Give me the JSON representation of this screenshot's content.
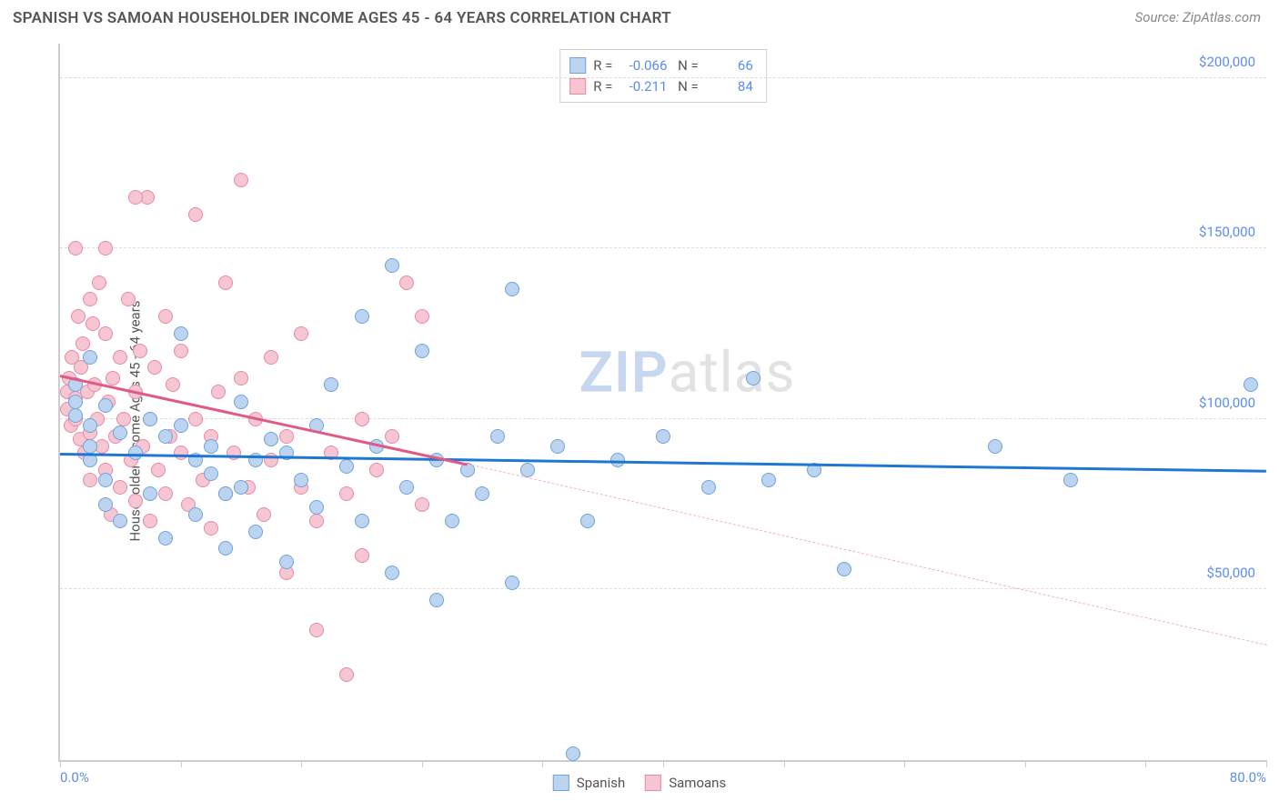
{
  "header": {
    "title": "SPANISH VS SAMOAN HOUSEHOLDER INCOME AGES 45 - 64 YEARS CORRELATION CHART",
    "source": "Source: ZipAtlas.com"
  },
  "chart": {
    "type": "scatter",
    "ylabel": "Householder Income Ages 45 - 64 years",
    "xlim": [
      0,
      80
    ],
    "ylim": [
      0,
      210000
    ],
    "x_tick_positions": [
      0,
      8,
      16,
      24,
      32,
      40,
      48,
      56,
      64,
      72,
      80
    ],
    "x_label_min": "0.0%",
    "x_label_max": "80.0%",
    "y_gridlines": [
      50000,
      100000,
      150000,
      200000
    ],
    "y_tick_labels": [
      "$50,000",
      "$100,000",
      "$150,000",
      "$200,000"
    ],
    "background_color": "#ffffff",
    "grid_color": "#dddddd",
    "axis_color": "#cccccc",
    "tick_label_color": "#5b8def",
    "watermark": {
      "zip": "ZIP",
      "rest": "atlas",
      "zip_color": "#c7d7ef",
      "rest_color": "#e2e2e2"
    },
    "series": [
      {
        "name": "Spanish",
        "fill": "#bcd4f0",
        "stroke": "#6fa3dd",
        "trend_color": "#1f77d4",
        "R": "-0.066",
        "N": "66",
        "trend": {
          "x1": 0,
          "y1": 90000,
          "x2": 80,
          "y2": 85000
        },
        "points": [
          [
            1,
            105000
          ],
          [
            1,
            101000
          ],
          [
            1,
            110000
          ],
          [
            2,
            98000
          ],
          [
            2,
            92000
          ],
          [
            2,
            88000
          ],
          [
            2,
            118000
          ],
          [
            3,
            104000
          ],
          [
            3,
            82000
          ],
          [
            3,
            75000
          ],
          [
            4,
            96000
          ],
          [
            4,
            70000
          ],
          [
            5,
            90000
          ],
          [
            6,
            100000
          ],
          [
            6,
            78000
          ],
          [
            7,
            95000
          ],
          [
            7,
            65000
          ],
          [
            8,
            98000
          ],
          [
            8,
            125000
          ],
          [
            9,
            88000
          ],
          [
            9,
            72000
          ],
          [
            10,
            84000
          ],
          [
            10,
            92000
          ],
          [
            11,
            78000
          ],
          [
            11,
            62000
          ],
          [
            12,
            80000
          ],
          [
            12,
            105000
          ],
          [
            13,
            88000
          ],
          [
            13,
            67000
          ],
          [
            14,
            94000
          ],
          [
            15,
            90000
          ],
          [
            15,
            58000
          ],
          [
            16,
            82000
          ],
          [
            17,
            74000
          ],
          [
            17,
            98000
          ],
          [
            18,
            110000
          ],
          [
            19,
            86000
          ],
          [
            20,
            130000
          ],
          [
            20,
            70000
          ],
          [
            21,
            92000
          ],
          [
            22,
            145000
          ],
          [
            22,
            55000
          ],
          [
            23,
            80000
          ],
          [
            24,
            120000
          ],
          [
            25,
            88000
          ],
          [
            25,
            47000
          ],
          [
            26,
            70000
          ],
          [
            27,
            85000
          ],
          [
            28,
            78000
          ],
          [
            29,
            95000
          ],
          [
            30,
            138000
          ],
          [
            30,
            52000
          ],
          [
            31,
            85000
          ],
          [
            33,
            92000
          ],
          [
            34,
            2000
          ],
          [
            35,
            70000
          ],
          [
            37,
            88000
          ],
          [
            40,
            95000
          ],
          [
            43,
            80000
          ],
          [
            46,
            112000
          ],
          [
            47,
            82000
          ],
          [
            50,
            85000
          ],
          [
            52,
            56000
          ],
          [
            62,
            92000
          ],
          [
            67,
            82000
          ],
          [
            79,
            110000
          ]
        ]
      },
      {
        "name": "Samoans",
        "fill": "#f6c6d2",
        "stroke": "#e88aa3",
        "trend_color": "#e05a84",
        "trend_dash_color": "#f2b3c3",
        "R": "-0.211",
        "N": "84",
        "trend_solid": {
          "x1": 0,
          "y1": 113000,
          "x2": 27,
          "y2": 87000
        },
        "trend_dash": {
          "x1": 27,
          "y1": 87000,
          "x2": 80,
          "y2": 34000
        },
        "points": [
          [
            0.5,
            108000
          ],
          [
            0.5,
            103000
          ],
          [
            0.6,
            112000
          ],
          [
            0.7,
            98000
          ],
          [
            0.8,
            118000
          ],
          [
            1,
            150000
          ],
          [
            1,
            106000
          ],
          [
            1,
            100000
          ],
          [
            1.2,
            130000
          ],
          [
            1.3,
            94000
          ],
          [
            1.4,
            115000
          ],
          [
            1.5,
            122000
          ],
          [
            1.6,
            90000
          ],
          [
            1.8,
            108000
          ],
          [
            2,
            135000
          ],
          [
            2,
            96000
          ],
          [
            2,
            82000
          ],
          [
            2.2,
            128000
          ],
          [
            2.3,
            110000
          ],
          [
            2.5,
            100000
          ],
          [
            2.6,
            140000
          ],
          [
            2.8,
            92000
          ],
          [
            3,
            125000
          ],
          [
            3,
            85000
          ],
          [
            3.2,
            105000
          ],
          [
            3.4,
            72000
          ],
          [
            3.5,
            112000
          ],
          [
            3.7,
            95000
          ],
          [
            4,
            118000
          ],
          [
            4,
            80000
          ],
          [
            4.2,
            100000
          ],
          [
            4.5,
            135000
          ],
          [
            4.7,
            88000
          ],
          [
            5,
            108000
          ],
          [
            5,
            76000
          ],
          [
            5.3,
            120000
          ],
          [
            5.5,
            92000
          ],
          [
            5.8,
            165000
          ],
          [
            6,
            100000
          ],
          [
            6,
            70000
          ],
          [
            6.3,
            115000
          ],
          [
            6.5,
            85000
          ],
          [
            7,
            130000
          ],
          [
            7,
            78000
          ],
          [
            7.3,
            95000
          ],
          [
            7.5,
            110000
          ],
          [
            8,
            90000
          ],
          [
            8,
            120000
          ],
          [
            8.5,
            75000
          ],
          [
            9,
            100000
          ],
          [
            9,
            160000
          ],
          [
            9.5,
            82000
          ],
          [
            10,
            95000
          ],
          [
            10,
            68000
          ],
          [
            10.5,
            108000
          ],
          [
            11,
            78000
          ],
          [
            11,
            140000
          ],
          [
            11.5,
            90000
          ],
          [
            12,
            112000
          ],
          [
            12,
            170000
          ],
          [
            12.5,
            80000
          ],
          [
            13,
            100000
          ],
          [
            13.5,
            72000
          ],
          [
            14,
            88000
          ],
          [
            14,
            118000
          ],
          [
            15,
            55000
          ],
          [
            15,
            95000
          ],
          [
            16,
            80000
          ],
          [
            16,
            125000
          ],
          [
            17,
            70000
          ],
          [
            17,
            38000
          ],
          [
            18,
            90000
          ],
          [
            18,
            110000
          ],
          [
            19,
            78000
          ],
          [
            20,
            100000
          ],
          [
            20,
            60000
          ],
          [
            21,
            85000
          ],
          [
            22,
            95000
          ],
          [
            23,
            140000
          ],
          [
            24,
            75000
          ],
          [
            24,
            130000
          ],
          [
            19,
            25000
          ],
          [
            5,
            165000
          ],
          [
            3,
            150000
          ]
        ]
      }
    ],
    "legend_bottom": [
      {
        "label": "Spanish",
        "fill": "#bcd4f0",
        "stroke": "#6fa3dd"
      },
      {
        "label": "Samoans",
        "fill": "#f6c6d2",
        "stroke": "#e88aa3"
      }
    ]
  }
}
